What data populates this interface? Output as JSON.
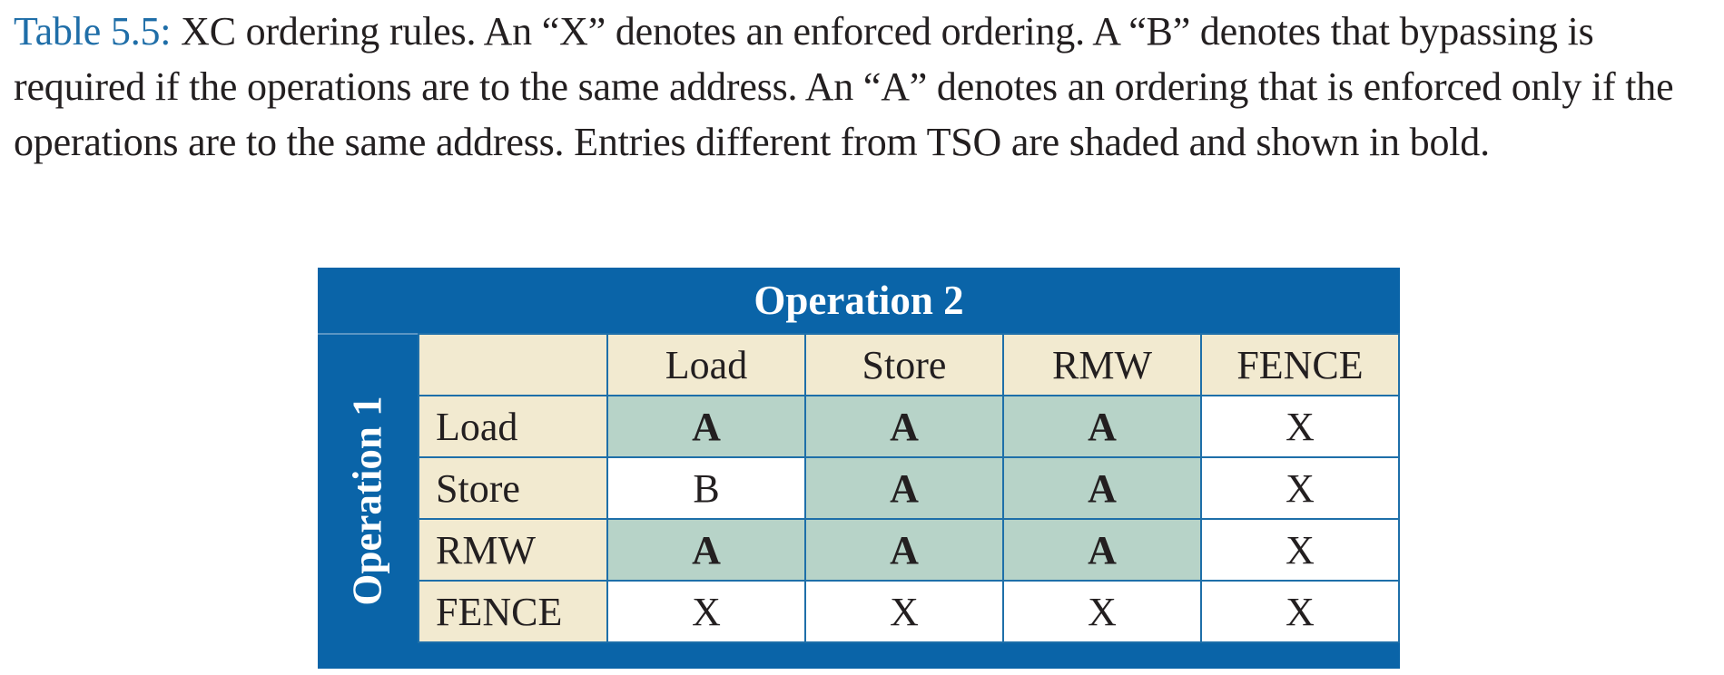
{
  "caption": {
    "label": "Table 5.5:",
    "text": " XC ordering rules. An “X” denotes an enforced ordering. A “B” denotes that bypassing is required if the operations are to the same address. An “A” denotes an ordering that is enforced only if the operations are to the same address. Entries different from TSO are shaded and shown in bold."
  },
  "table": {
    "op2_title": "Operation 2",
    "op1_title": "Operation 1",
    "columns": [
      "Load",
      "Store",
      "RMW",
      "FENCE"
    ],
    "rows": [
      {
        "label": "Load",
        "cells": [
          "A",
          "A",
          "A",
          "X"
        ],
        "shaded": [
          true,
          true,
          true,
          false
        ]
      },
      {
        "label": "Store",
        "cells": [
          "B",
          "A",
          "A",
          "X"
        ],
        "shaded": [
          false,
          true,
          true,
          false
        ]
      },
      {
        "label": "RMW",
        "cells": [
          "A",
          "A",
          "A",
          "X"
        ],
        "shaded": [
          true,
          true,
          true,
          false
        ]
      },
      {
        "label": "FENCE",
        "cells": [
          "X",
          "X",
          "X",
          "X"
        ],
        "shaded": [
          false,
          false,
          false,
          false
        ]
      }
    ]
  },
  "colors": {
    "caption_label": "#1f6ea8",
    "header_blue": "#0a64a8",
    "header_beige": "#f2ead0",
    "shaded_cell": "#b7d3c8"
  }
}
